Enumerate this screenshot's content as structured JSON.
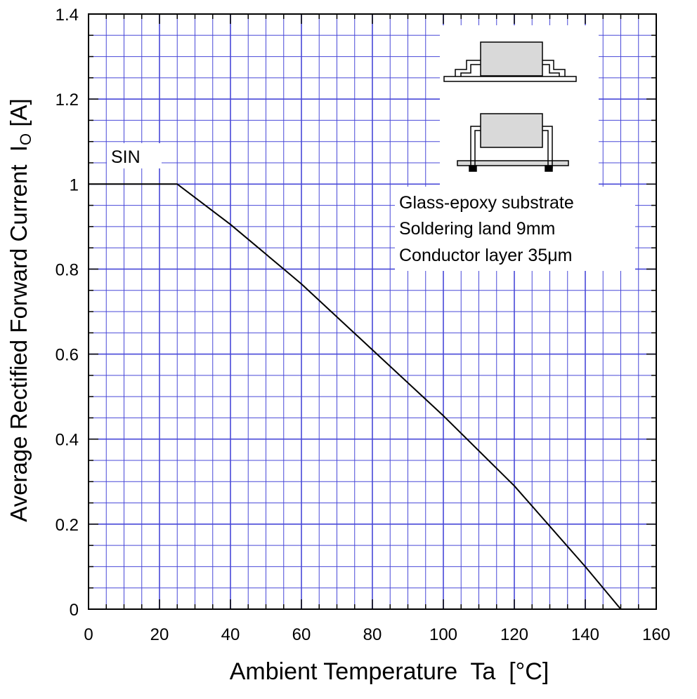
{
  "chart_data": {
    "type": "line",
    "xlabel": "Ambient Temperature  Ta  [°C]",
    "ylabel": "Average Rectified Forward Current  IO [A]",
    "ylabel_main": "Average Rectified Forward Current  I",
    "ylabel_sub": "O",
    "ylabel_unit": " [A]",
    "xlim": [
      0,
      160
    ],
    "ylim": [
      0,
      1.4
    ],
    "x_major_ticks": [
      0,
      20,
      40,
      60,
      80,
      100,
      120,
      140,
      160
    ],
    "y_major_ticks": [
      0,
      0.2,
      0.4,
      0.6,
      0.8,
      1,
      1.2,
      1.4
    ],
    "x_tick_labels": [
      "0",
      "20",
      "40",
      "60",
      "80",
      "100",
      "120",
      "140",
      "160"
    ],
    "y_tick_labels": [
      "0",
      "0.2",
      "0.4",
      "0.6",
      "0.8",
      "1",
      "1.2",
      "1.4"
    ],
    "x_minor_step": 5,
    "y_minor_step": 0.05,
    "grid": true,
    "grid_color": "#4848d8",
    "series": [
      {
        "name": "SIN",
        "color": "#000000",
        "points": [
          [
            0,
            1.0
          ],
          [
            25,
            1.0
          ],
          [
            40,
            0.905
          ],
          [
            55,
            0.8
          ],
          [
            60,
            0.765
          ],
          [
            80,
            0.61
          ],
          [
            100,
            0.455
          ],
          [
            120,
            0.29
          ],
          [
            140,
            0.1
          ],
          [
            150,
            0.0
          ]
        ]
      }
    ],
    "annotations": {
      "series_label": "SIN",
      "note_lines": [
        "Glass-epoxy  substrate",
        "Soldering  land  9mm",
        "Conductor layer 35μm"
      ]
    }
  }
}
